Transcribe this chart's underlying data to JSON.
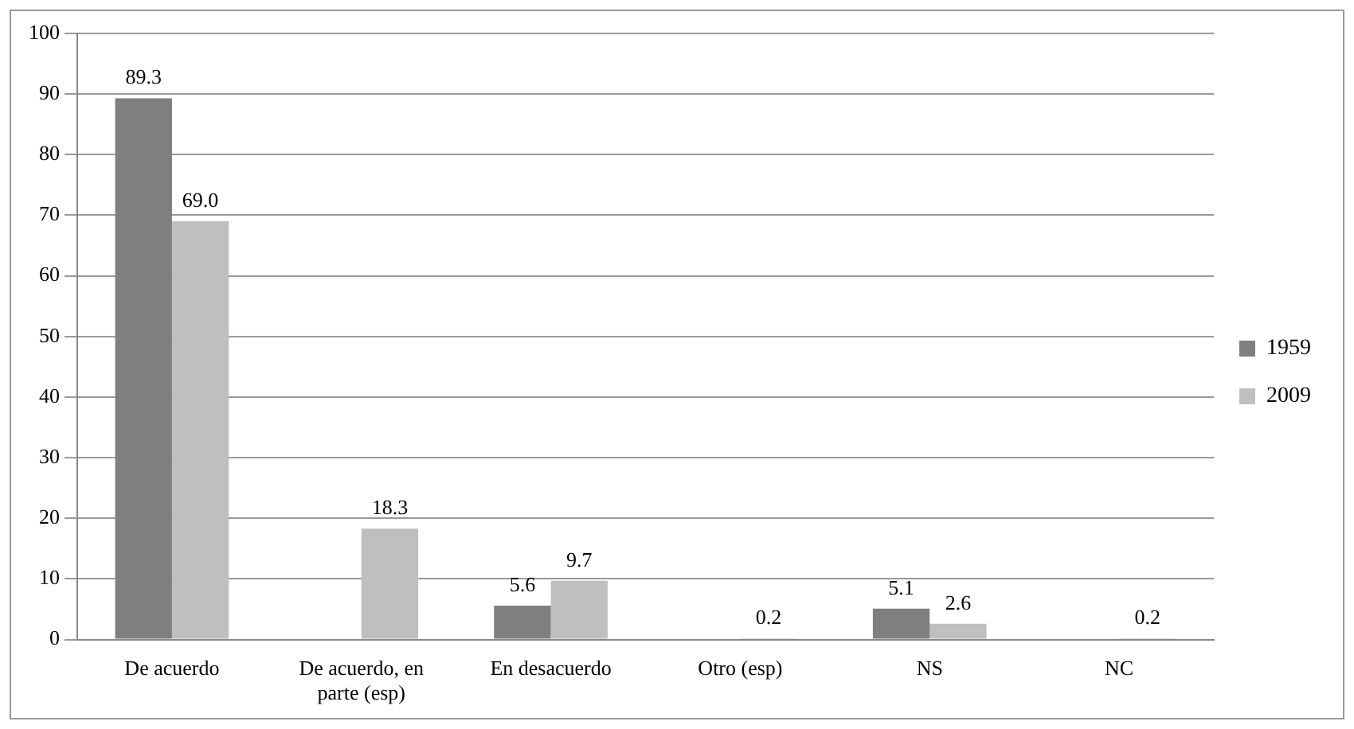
{
  "chart_data": {
    "type": "bar",
    "categories": [
      "De acuerdo",
      "De acuerdo, en parte (esp)",
      "En desacuerdo",
      "Otro (esp)",
      "NS",
      "NC"
    ],
    "series": [
      {
        "name": "1959",
        "color": "#7f7f7f",
        "values": [
          89.3,
          null,
          5.6,
          null,
          5.1,
          null
        ],
        "value_labels": [
          "89.3",
          null,
          "5.6",
          null,
          "5.1",
          null
        ]
      },
      {
        "name": "2009",
        "color": "#bfbfbf",
        "values": [
          69.0,
          18.3,
          9.7,
          0.2,
          2.6,
          0.2
        ],
        "value_labels": [
          "69.0",
          "18.3",
          "9.7",
          "0.2",
          "2.6",
          "0.2"
        ]
      }
    ],
    "ylim": [
      0,
      100
    ],
    "yticks": [
      0,
      10,
      20,
      30,
      40,
      50,
      60,
      70,
      80,
      90,
      100
    ],
    "grid": "y",
    "legend": "right"
  }
}
